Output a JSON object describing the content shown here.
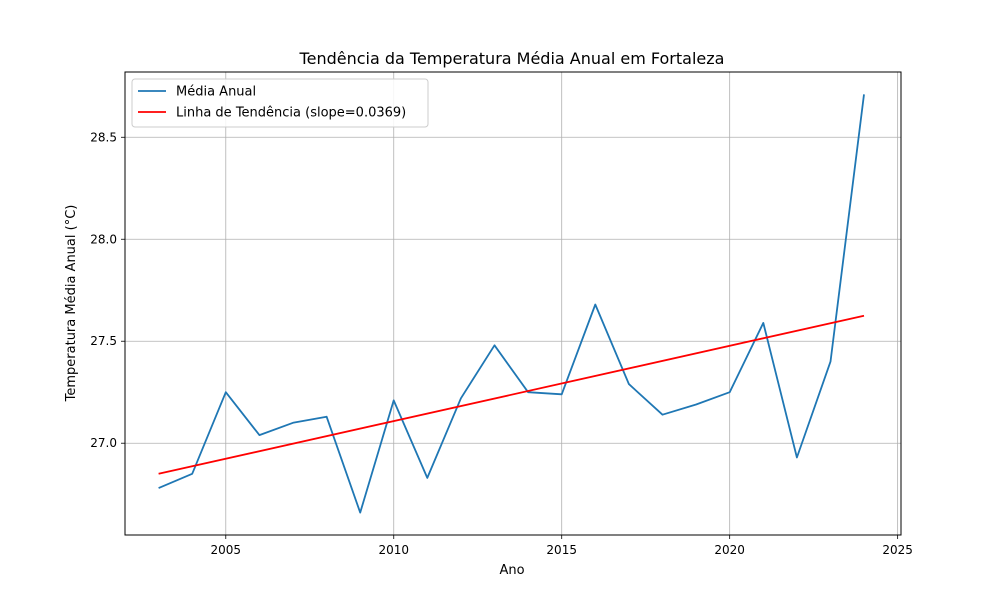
{
  "chart_data": {
    "type": "line",
    "title": "Tendência da Temperatura Média Anual em Fortaleza",
    "xlabel": "Ano",
    "ylabel": "Temperatura Média Anual (°C)",
    "xlim": [
      2002.0,
      2025.1
    ],
    "ylim": [
      26.55,
      28.82
    ],
    "xticks": [
      2005,
      2010,
      2015,
      2020,
      2025
    ],
    "yticks": [
      27.0,
      27.5,
      28.0,
      28.5
    ],
    "xtick_labels": [
      "2005",
      "2010",
      "2015",
      "2020",
      "2025"
    ],
    "ytick_labels": [
      "27.0",
      "27.5",
      "28.0",
      "28.5"
    ],
    "grid": true,
    "legend_position": "top-left",
    "series": [
      {
        "name": "Média Anual",
        "color": "#1f77b4",
        "x": [
          2003,
          2004,
          2005,
          2006,
          2007,
          2008,
          2009,
          2010,
          2011,
          2012,
          2013,
          2014,
          2015,
          2016,
          2017,
          2018,
          2019,
          2020,
          2021,
          2022,
          2023,
          2024
        ],
        "y": [
          26.78,
          26.85,
          27.25,
          27.04,
          27.1,
          27.13,
          26.66,
          27.21,
          26.83,
          27.22,
          27.48,
          27.25,
          27.24,
          27.68,
          27.29,
          27.14,
          27.19,
          27.25,
          27.59,
          26.93,
          27.4,
          28.71
        ]
      },
      {
        "name": "Linha de Tendência (slope=0.0369)",
        "color": "#ff0000",
        "x": [
          2003,
          2024
        ],
        "y": [
          26.85,
          27.625
        ]
      }
    ]
  }
}
